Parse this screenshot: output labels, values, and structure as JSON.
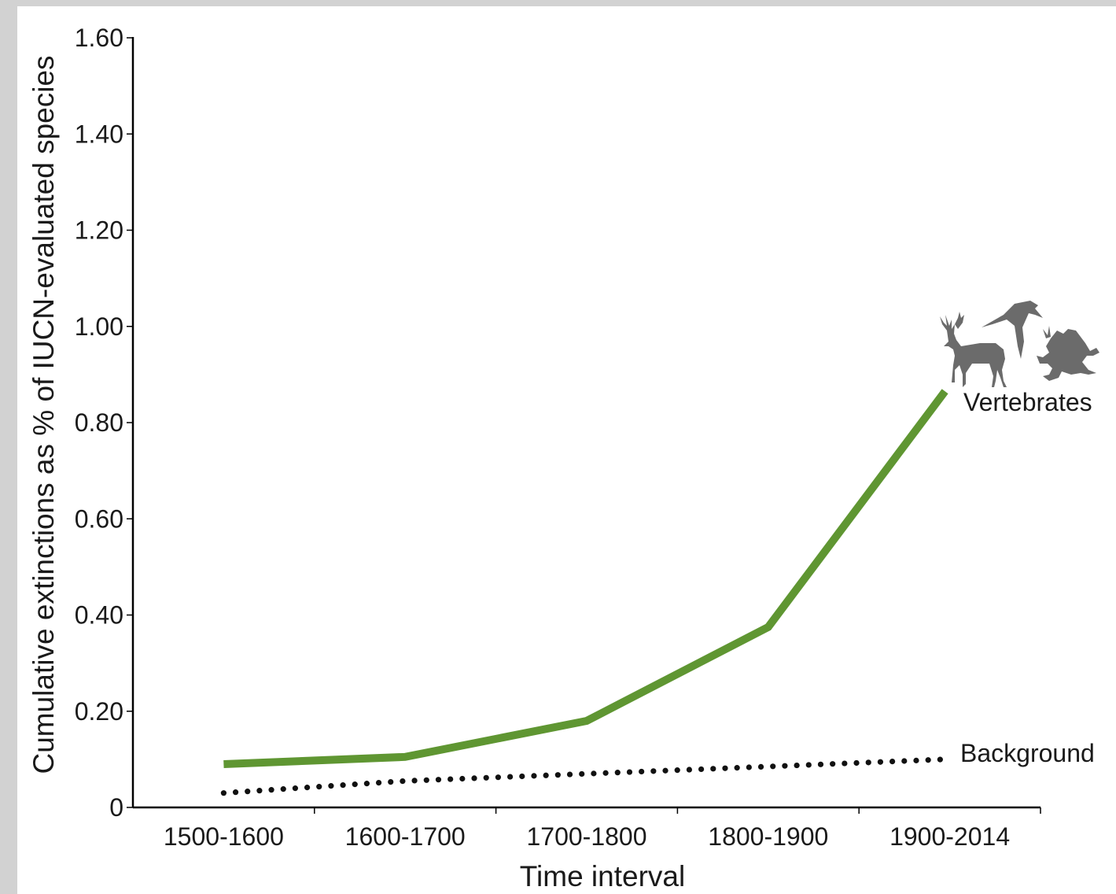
{
  "chart_data": {
    "type": "line",
    "title": "",
    "xlabel": "Time interval",
    "ylabel": "Cumulative extinctions as % of IUCN-evaluated species",
    "categories": [
      "1500-1600",
      "1600-1700",
      "1700-1800",
      "1800-1900",
      "1900-2014"
    ],
    "ylim": [
      0,
      1.6
    ],
    "yticks": [
      "0",
      "0.20",
      "0.40",
      "0.60",
      "0.80",
      "1.00",
      "1.20",
      "1.40",
      "1.60"
    ],
    "grid": false,
    "series": [
      {
        "name": "Vertebrates",
        "values": [
          0.09,
          0.105,
          0.18,
          0.375,
          0.865
        ],
        "style": "solid",
        "color": "#5f9632",
        "icon": "vertebrates-silhouette-icon"
      },
      {
        "name": "Background",
        "values": [
          0.03,
          0.055,
          0.07,
          0.085,
          0.1
        ],
        "style": "dotted",
        "color": "#111111"
      }
    ]
  }
}
